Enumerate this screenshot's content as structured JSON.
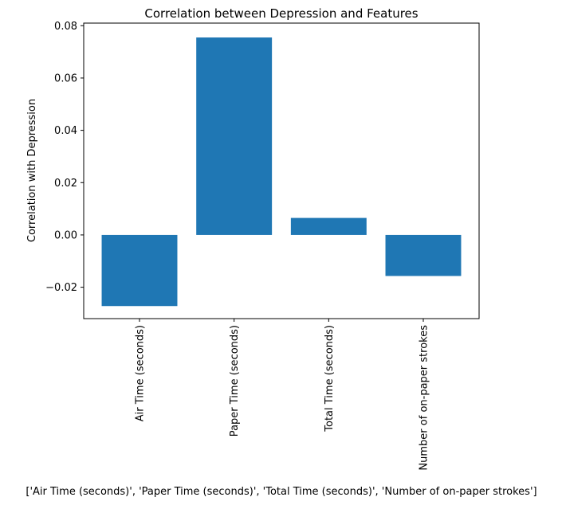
{
  "chart_data": {
    "type": "bar",
    "title": "Correlation between Depression and Features",
    "xlabel": "['Air Time (seconds)', 'Paper Time (seconds)', 'Total Time (seconds)', 'Number of on-paper strokes']",
    "ylabel": "Correlation with Depression",
    "categories": [
      "Air Time (seconds)",
      "Paper Time (seconds)",
      "Total Time (seconds)",
      "Number of on-paper strokes"
    ],
    "values": [
      -0.0272,
      0.0755,
      0.0065,
      -0.0157
    ],
    "ylim": [
      -0.032,
      0.081
    ],
    "yticks": [
      -0.02,
      0.0,
      0.02,
      0.04,
      0.06,
      0.08
    ],
    "ytick_labels": [
      "−0.02",
      "0.00",
      "0.02",
      "0.04",
      "0.06",
      "0.08"
    ],
    "grid": false,
    "bar_color": "#1f77b4"
  }
}
